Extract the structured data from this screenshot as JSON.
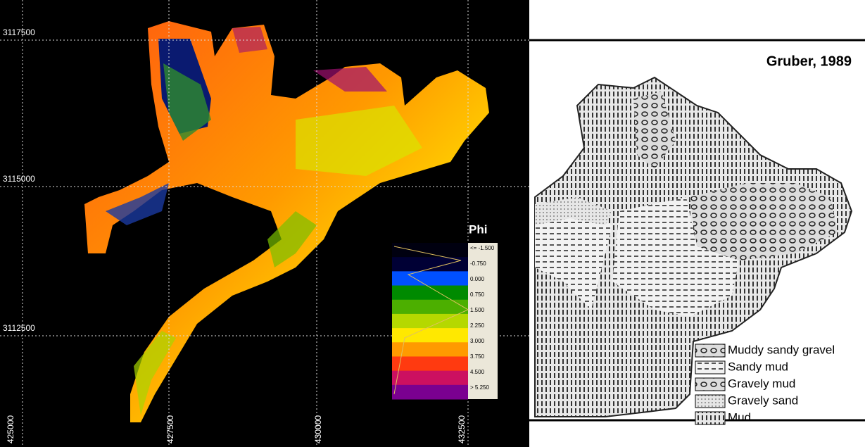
{
  "map": {
    "y_labels": [
      "3117500",
      "3115000",
      "3112500"
    ],
    "x_labels": [
      "425000",
      "427500",
      "430000",
      "432500"
    ],
    "scale_title": "Phi",
    "scale_labels": [
      "<= -1.500",
      "-0.750",
      "0.000",
      "0.750",
      "1.500",
      "2.250",
      "3.000",
      "3.750",
      "4.500",
      "> 5.250"
    ]
  },
  "reference": {
    "title": "Gruber, 1989",
    "legend": [
      "Muddy sandy gravel",
      "Sandy mud",
      "Gravely mud",
      "Gravely sand",
      "Mud"
    ]
  }
}
